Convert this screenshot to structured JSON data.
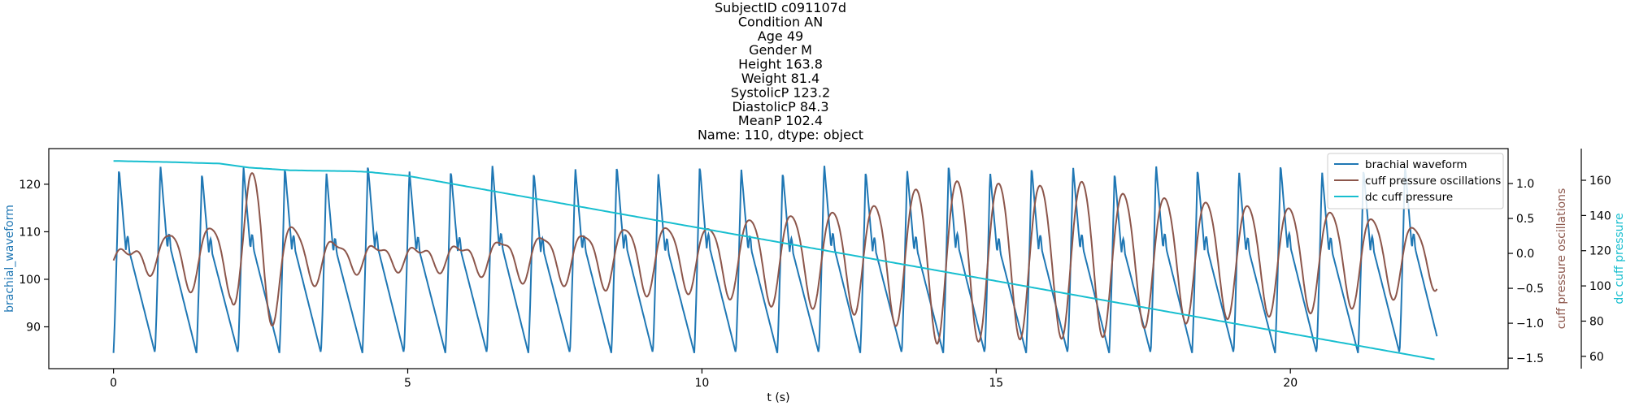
{
  "title_lines": [
    "SubjectID     c091107d",
    "Condition           AN",
    "Age                 49",
    "Gender               M",
    "Height           163.8",
    "Weight            81.4",
    "SystolicP        123.2",
    "DiastolicP        84.3",
    "MeanP            102.4",
    "Name: 110, dtype: object"
  ],
  "chart_data": {
    "type": "line",
    "title": "SubjectID c091107d / Condition AN / Age 49 / Gender M / Height 163.8 / Weight 81.4 / SystolicP 123.2 / DiastolicP 84.3 / MeanP 102.4 / Name: 110, dtype: object",
    "xlabel": "t (s)",
    "xlim": [
      -1.1,
      23.7
    ],
    "xticks": [
      0,
      5,
      10,
      15,
      20
    ],
    "grid": false,
    "legend_position": "top-right",
    "axes": [
      {
        "id": "left",
        "label": "brachial_waveform",
        "label_color": "#1f77b4",
        "ylim": [
          81.2,
          127.5
        ],
        "ticks": [
          90,
          100,
          110,
          120
        ]
      },
      {
        "id": "right1",
        "label": "cuff pressure oscillations",
        "label_color": "#8c564b",
        "ylim": [
          -1.65,
          1.5
        ],
        "ticks": [
          -1.5,
          -1.0,
          -0.5,
          0.0,
          0.5,
          1.0
        ],
        "tick_labels": [
          "−1.5",
          "−1.0",
          "−0.5",
          "0.0",
          "0.5",
          "1.0"
        ]
      },
      {
        "id": "right2",
        "label": "dc cuff pressure",
        "label_color": "#17becf",
        "ylim": [
          53,
          178
        ],
        "ticks": [
          60,
          80,
          100,
          120,
          140,
          160
        ]
      }
    ],
    "series": [
      {
        "name": "brachial waveform",
        "axis": "left",
        "color": "#1f77b4",
        "beat_period_s": 0.705,
        "first_beat_s": 0.0,
        "t_range": [
          0,
          22.5
        ],
        "systolic_peak_range": [
          122,
          125
        ],
        "diastolic_trough_range": [
          83,
          86
        ],
        "start_value": 83.5,
        "end_value": 84.5
      },
      {
        "name": "cuff pressure oscillations",
        "axis": "right1",
        "color": "#8c564b",
        "beat_period_s": 0.705,
        "t_range": [
          0,
          22.5
        ],
        "x": [
          0,
          0.5,
          1.0,
          1.5,
          2.0,
          2.3,
          2.5,
          2.9,
          3.5,
          4.0,
          4.5,
          5.0,
          6.0,
          7.0,
          8.0,
          9.0,
          10.0,
          11.0,
          12.0,
          13.0,
          14.0,
          15.0,
          16.0,
          16.6,
          17.0,
          18.0,
          19.0,
          20.0,
          21.0,
          22.0,
          22.5
        ],
        "amplitude": [
          0.1,
          0.15,
          0.45,
          0.5,
          0.6,
          1.4,
          1.45,
          0.6,
          0.35,
          0.2,
          0.2,
          0.15,
          0.2,
          0.35,
          0.4,
          0.55,
          0.5,
          0.7,
          0.75,
          0.9,
          1.3,
          1.25,
          1.2,
          1.3,
          1.1,
          1.0,
          0.9,
          0.85,
          0.75,
          0.55,
          0.45
        ],
        "start_value": -0.18,
        "end_value": -0.37
      },
      {
        "name": "dc cuff pressure",
        "axis": "right2",
        "color": "#17becf",
        "x": [
          0,
          1.0,
          1.8,
          2.3,
          3.0,
          3.5,
          4.0,
          4.3,
          5.0,
          22.5
        ],
        "y": [
          171,
          170.3,
          169.5,
          167.2,
          165.7,
          165.4,
          165.2,
          164.8,
          162.5,
          58
        ]
      }
    ]
  }
}
